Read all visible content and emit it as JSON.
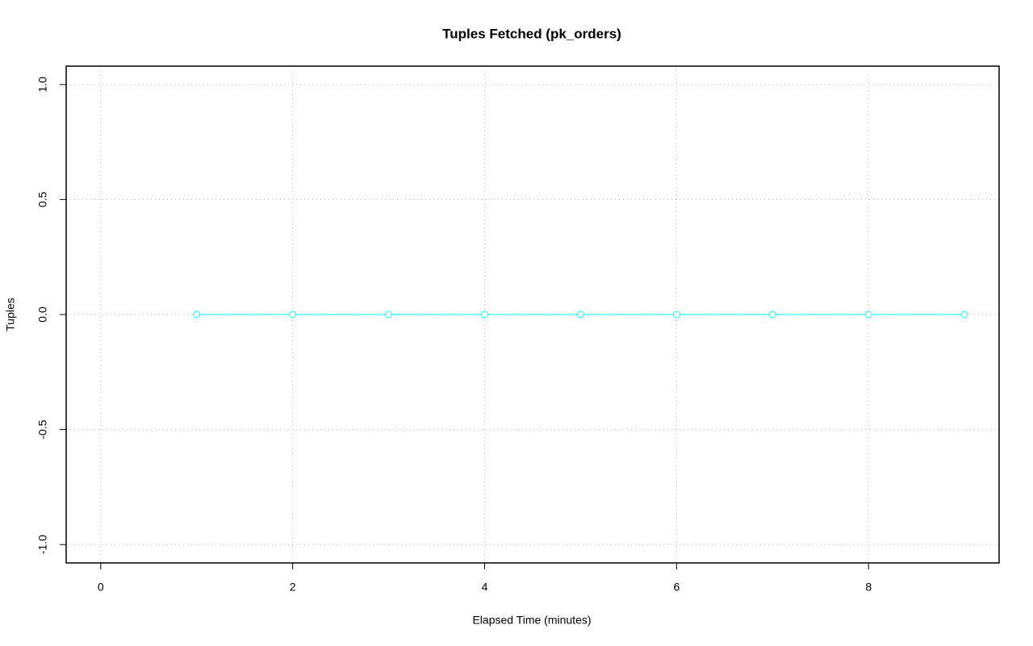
{
  "chart_data": {
    "type": "line",
    "title": "Tuples Fetched (pk_orders)",
    "x_label": "Elapsed Time (minutes)",
    "y_label": "Tuples",
    "series": [
      {
        "name": "pk_orders",
        "color": "#00ffff",
        "x": [
          1,
          2,
          3,
          4,
          5,
          6,
          7,
          8,
          9
        ],
        "values": [
          0,
          0,
          0,
          0,
          0,
          0,
          0,
          0,
          0
        ]
      }
    ],
    "xlim": [
      -0.36,
      9.36
    ],
    "xticks": [
      0,
      2,
      4,
      6,
      8
    ],
    "ylim": [
      -1.08,
      1.08
    ],
    "yticks": [
      {
        "value": -1,
        "label": "-1.0"
      },
      {
        "value": -0.5,
        "label": "-0.5"
      },
      {
        "value": 0,
        "label": "0.0"
      },
      {
        "value": 0.5,
        "label": "0.5"
      },
      {
        "value": 1,
        "label": "1.0"
      }
    ],
    "grid": true
  }
}
